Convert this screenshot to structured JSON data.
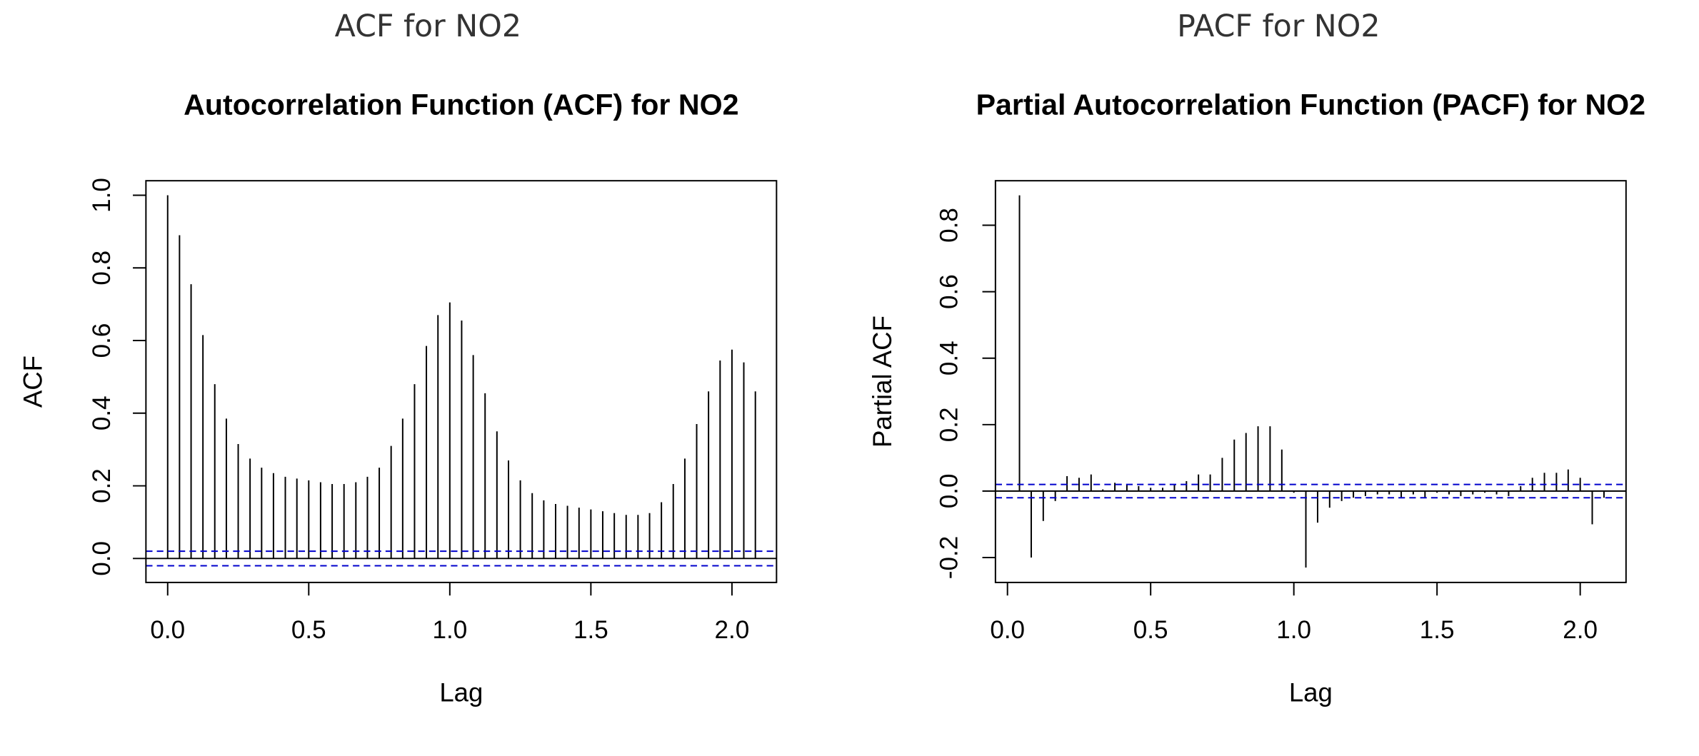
{
  "chart_data": [
    {
      "type": "stem",
      "heading": "ACF for NO2",
      "title": "Autocorrelation Function (ACF) for NO2",
      "xlabel": "Lag",
      "ylabel": "ACF",
      "x": [
        0,
        0.042,
        0.083,
        0.125,
        0.167,
        0.208,
        0.25,
        0.292,
        0.333,
        0.375,
        0.417,
        0.458,
        0.5,
        0.542,
        0.583,
        0.625,
        0.667,
        0.708,
        0.75,
        0.792,
        0.833,
        0.875,
        0.917,
        0.958,
        1,
        1.042,
        1.083,
        1.125,
        1.167,
        1.208,
        1.25,
        1.292,
        1.333,
        1.375,
        1.417,
        1.458,
        1.5,
        1.542,
        1.583,
        1.625,
        1.667,
        1.708,
        1.75,
        1.792,
        1.833,
        1.875,
        1.917,
        1.958,
        2,
        2.042,
        2.083
      ],
      "values": [
        1.0,
        0.89,
        0.755,
        0.615,
        0.48,
        0.385,
        0.315,
        0.275,
        0.25,
        0.235,
        0.225,
        0.22,
        0.215,
        0.21,
        0.205,
        0.205,
        0.21,
        0.225,
        0.25,
        0.31,
        0.385,
        0.48,
        0.585,
        0.67,
        0.705,
        0.655,
        0.56,
        0.455,
        0.35,
        0.27,
        0.215,
        0.18,
        0.16,
        0.15,
        0.145,
        0.14,
        0.135,
        0.13,
        0.125,
        0.12,
        0.12,
        0.125,
        0.155,
        0.205,
        0.275,
        0.37,
        0.46,
        0.545,
        0.575,
        0.54,
        0.46
      ],
      "color": "#000000",
      "ci": 0.02,
      "ci_color": "#0000cc",
      "xlim": [
        -0.077,
        2.158
      ],
      "ylim": [
        -0.066,
        1.04
      ],
      "xticks": [
        {
          "value": 0,
          "label": "0.0"
        },
        0.5,
        {
          "value": 1,
          "label": "1.0"
        },
        1.5,
        {
          "value": 2,
          "label": "2.0"
        }
      ],
      "yticks": [
        {
          "value": 0,
          "label": "0.0"
        },
        0.2,
        0.4,
        0.6,
        0.8,
        {
          "value": 1,
          "label": "1.0"
        }
      ]
    },
    {
      "type": "stem",
      "heading": "PACF for NO2",
      "title": "Partial Autocorrelation Function (PACF) for NO2",
      "xlabel": "Lag",
      "ylabel": "Partial ACF",
      "x": [
        0.042,
        0.083,
        0.125,
        0.167,
        0.208,
        0.25,
        0.292,
        0.333,
        0.375,
        0.417,
        0.458,
        0.5,
        0.542,
        0.583,
        0.625,
        0.667,
        0.708,
        0.75,
        0.792,
        0.833,
        0.875,
        0.917,
        0.958,
        1,
        1.042,
        1.083,
        1.125,
        1.167,
        1.208,
        1.25,
        1.292,
        1.333,
        1.375,
        1.417,
        1.458,
        1.5,
        1.542,
        1.583,
        1.625,
        1.667,
        1.708,
        1.75,
        1.792,
        1.833,
        1.875,
        1.917,
        1.958,
        2,
        2.042,
        2.083
      ],
      "values": [
        0.89,
        -0.2,
        -0.09,
        -0.03,
        0.045,
        0.04,
        0.05,
        0.005,
        0.025,
        0.02,
        0.015,
        0.01,
        0.01,
        0.02,
        0.03,
        0.05,
        0.05,
        0.1,
        0.155,
        0.175,
        0.195,
        0.195,
        0.125,
        -0.005,
        -0.23,
        -0.095,
        -0.05,
        -0.03,
        -0.02,
        -0.015,
        -0.01,
        -0.01,
        -0.02,
        -0.01,
        -0.02,
        -0.005,
        -0.01,
        -0.015,
        -0.01,
        -0.005,
        -0.01,
        -0.015,
        0.015,
        0.04,
        0.055,
        0.055,
        0.065,
        0.04,
        -0.1,
        -0.02
      ],
      "color": "#000000",
      "ci": 0.02,
      "ci_color": "#0000cc",
      "xlim": [
        -0.042,
        2.16
      ],
      "ylim": [
        -0.275,
        0.934
      ],
      "xticks": [
        {
          "value": 0,
          "label": "0.0"
        },
        0.5,
        {
          "value": 1,
          "label": "1.0"
        },
        1.5,
        {
          "value": 2,
          "label": "2.0"
        }
      ],
      "yticks": [
        -0.2,
        {
          "value": 0,
          "label": "0.0"
        },
        0.2,
        0.4,
        0.6,
        0.8
      ]
    }
  ]
}
